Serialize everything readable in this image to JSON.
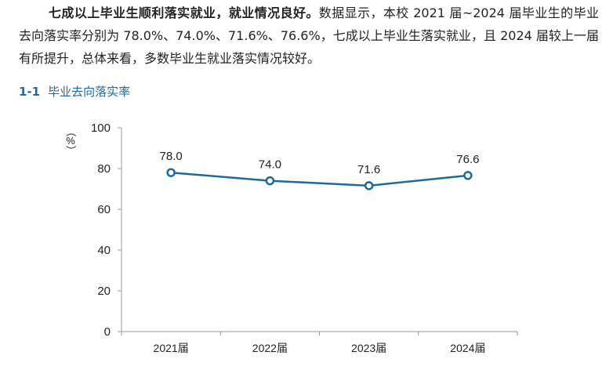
{
  "paragraph": {
    "bold": "七成以上毕业生顺利落实就业，就业情况良好。",
    "text": "数据显示，本校 2021 届~2024 届毕业生的毕业去向落实率分别为 78.0%、74.0%、71.6%、76.6%，七成以上毕业生落实就业，且 2024 届较上一届有所提升，总体来看，多数毕业生就业落实情况较好。"
  },
  "figure": {
    "number": "1-1",
    "title": "毕业去向落实率"
  },
  "chart_data": {
    "type": "line",
    "title": "毕业去向落实率",
    "ylabel": "（%）",
    "categories": [
      "2021届",
      "2022届",
      "2023届",
      "2024届"
    ],
    "values": [
      78.0,
      74.0,
      71.6,
      76.6
    ],
    "value_labels": [
      "78.0",
      "74.0",
      "71.6",
      "76.6"
    ],
    "ylim": [
      0,
      100
    ],
    "yticks": [
      "0",
      "20",
      "40",
      "60",
      "80",
      "100"
    ],
    "grid": false,
    "color": "#1f6a9a"
  }
}
